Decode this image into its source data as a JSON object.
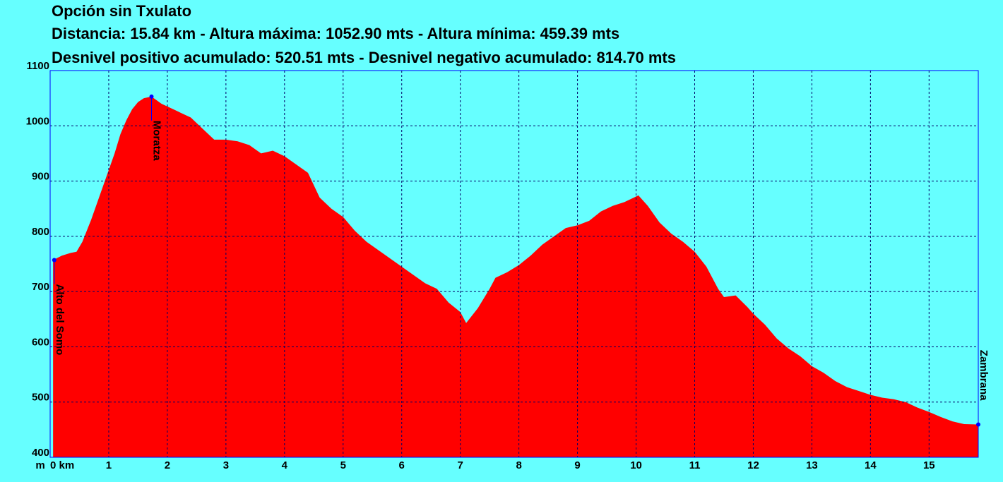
{
  "chart_data": {
    "type": "area",
    "title": "Opción sin Txulato",
    "subtitle": "Distancia: 15.84 km - Altura máxima: 1052.90 mts - Altura mínima: 459.39 mts",
    "subtitle2": "Desnivel positivo acumulado: 520.51 mts - Desnivel negativo acumulado: 814.70 mts",
    "y_label": "m",
    "x": [
      0.05,
      0.2,
      0.35,
      0.45,
      0.55,
      0.7,
      0.9,
      1.0,
      1.1,
      1.2,
      1.3,
      1.4,
      1.5,
      1.6,
      1.73,
      1.9,
      2.1,
      2.4,
      2.6,
      2.8,
      3.0,
      3.2,
      3.4,
      3.6,
      3.8,
      4.0,
      4.2,
      4.4,
      4.6,
      4.8,
      5.0,
      5.2,
      5.4,
      5.6,
      5.8,
      6.0,
      6.2,
      6.4,
      6.6,
      6.8,
      7.0,
      7.1,
      7.3,
      7.5,
      7.6,
      7.8,
      8.0,
      8.2,
      8.4,
      8.6,
      8.8,
      9.0,
      9.2,
      9.4,
      9.6,
      9.8,
      10.04,
      10.2,
      10.4,
      10.6,
      10.8,
      11.0,
      11.2,
      11.4,
      11.5,
      11.7,
      11.9,
      12.0,
      12.2,
      12.4,
      12.6,
      12.8,
      13.0,
      13.2,
      13.4,
      13.6,
      13.8,
      14.0,
      14.2,
      14.4,
      14.6,
      14.8,
      15.0,
      15.2,
      15.4,
      15.6,
      15.84
    ],
    "values": [
      757,
      765,
      770,
      772,
      790,
      830,
      890,
      920,
      950,
      985,
      1010,
      1030,
      1043,
      1050,
      1052.9,
      1040,
      1030,
      1015,
      995,
      975,
      975,
      972,
      965,
      950,
      955,
      945,
      930,
      915,
      870,
      850,
      835,
      810,
      790,
      775,
      760,
      745,
      730,
      715,
      705,
      680,
      663,
      643,
      670,
      705,
      725,
      735,
      748,
      765,
      785,
      800,
      815,
      820,
      828,
      845,
      855,
      862,
      874,
      855,
      825,
      805,
      790,
      772,
      745,
      705,
      690,
      693,
      672,
      660,
      640,
      615,
      597,
      583,
      565,
      553,
      538,
      527,
      520,
      513,
      508,
      505,
      500,
      490,
      482,
      473,
      465,
      460,
      459.39
    ],
    "color": "#ff0000",
    "waypoints": [
      {
        "name": "Alto del Somo",
        "x": 0.07,
        "value": 757
      },
      {
        "name": "Moratza",
        "x": 1.73,
        "value": 1052.9
      },
      {
        "name": "Zambrana",
        "x": 15.84,
        "value": 459.39
      }
    ],
    "waypoint_color": "#0000ff",
    "xlim": [
      0,
      15.84
    ],
    "xticks": [
      {
        "value": 0,
        "label": "0 km"
      },
      1,
      2,
      3,
      4,
      5,
      6,
      7,
      8,
      9,
      10,
      11,
      12,
      13,
      14,
      15
    ],
    "ylim": [
      400,
      1100
    ],
    "yticks": [
      400,
      500,
      600,
      700,
      800,
      900,
      1000,
      1100
    ],
    "grid": true
  }
}
